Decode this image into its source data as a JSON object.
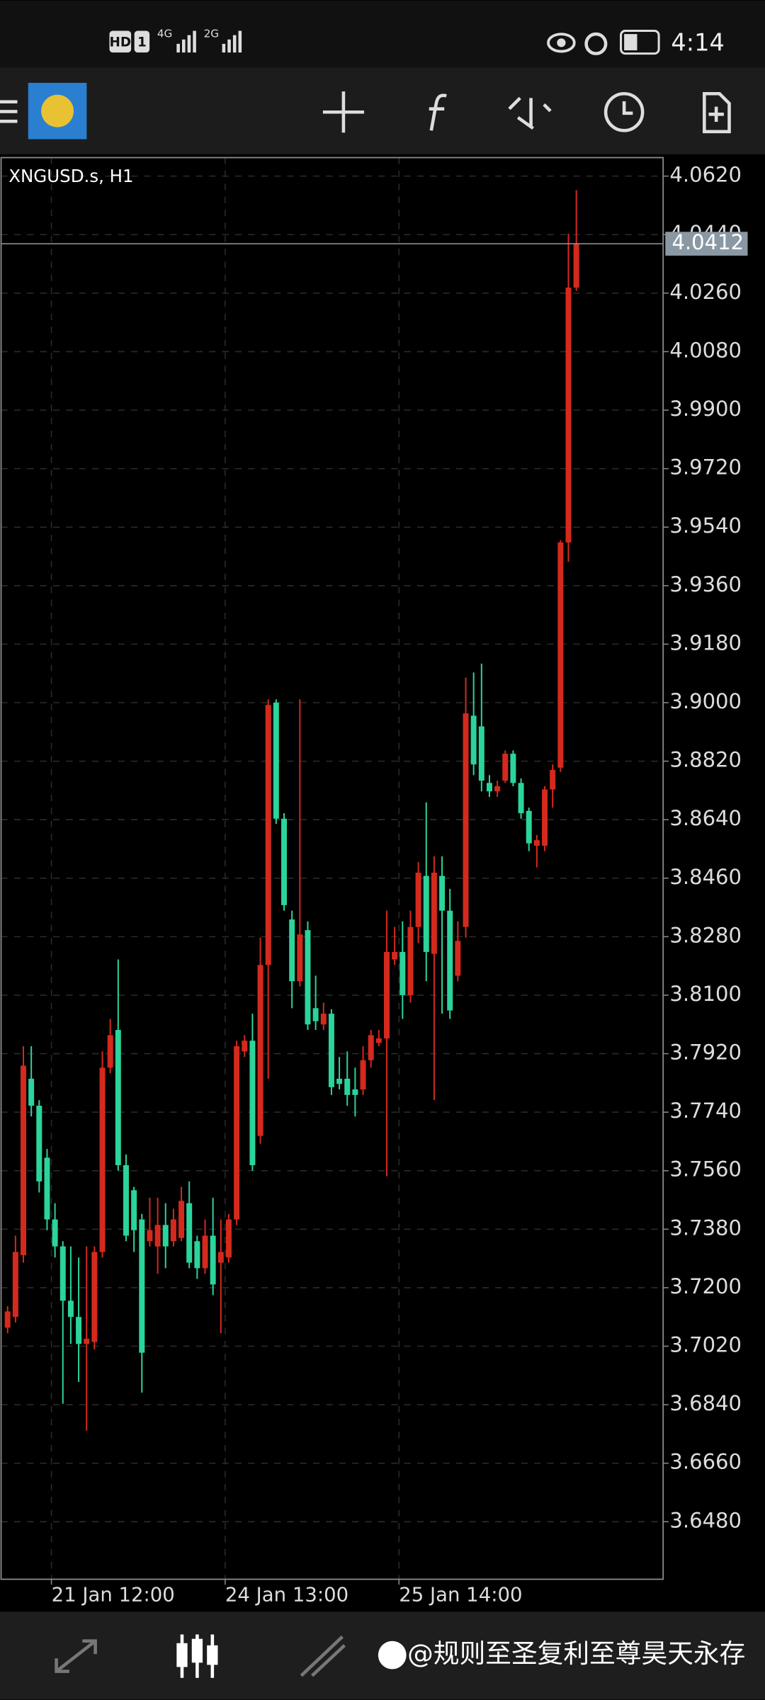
{
  "status_bar": {
    "time": "4:14",
    "hd": "HD",
    "sim": "1",
    "net1": "4G",
    "net2": "2G"
  },
  "watermark": "@规则至圣复利至尊昊天永存",
  "chart_data": {
    "type": "candlestick",
    "title": "XNGUSD.s, H1",
    "up_color": "#d42a1e",
    "down_color": "#2bd49b",
    "grid": true,
    "categories": [
      null,
      null,
      null,
      null,
      null,
      "21 Jan 12:00",
      null,
      null,
      null,
      null,
      null,
      null,
      null,
      null,
      null,
      null,
      null,
      null,
      null,
      null,
      null,
      null,
      null,
      null,
      null,
      null,
      null,
      "24 Jan 13:00",
      null,
      null,
      null,
      null,
      null,
      null,
      null,
      null,
      null,
      null,
      null,
      null,
      null,
      null,
      null,
      null,
      null,
      null,
      null,
      null,
      null,
      "25 Jan 14:00",
      null,
      null,
      null,
      null,
      null,
      null,
      null,
      null,
      null,
      null,
      null,
      null,
      null,
      null,
      null,
      null,
      null,
      null,
      null,
      null,
      null,
      null,
      null
    ],
    "open": [
      3.7077,
      3.711,
      3.73,
      3.7843,
      3.776,
      3.76,
      3.741,
      3.7327,
      3.716,
      3.711,
      3.7027,
      3.7033,
      3.731,
      3.7877,
      3.7993,
      3.7577,
      3.75,
      3.741,
      3.7343,
      3.7327,
      3.7393,
      3.7343,
      3.7353,
      3.746,
      3.7343,
      3.726,
      3.736,
      3.7277,
      3.7293,
      3.741,
      3.7927,
      3.796,
      3.7667,
      3.8193,
      3.9,
      3.8643,
      3.8333,
      3.8143,
      3.83,
      3.806,
      3.801,
      3.8043,
      3.7843,
      3.7843,
      3.781,
      3.781,
      3.79,
      3.7953,
      3.7967,
      3.821,
      3.8233,
      3.81,
      3.831,
      3.8467,
      3.8227,
      3.8467,
      3.836,
      3.816,
      3.831,
      3.896,
      3.8927,
      3.8753,
      3.8727,
      3.876,
      3.8843,
      3.8753,
      3.8667,
      3.856,
      3.856,
      3.8733,
      3.88,
      3.9493,
      4.0277
    ],
    "high": [
      3.7143,
      3.736,
      3.7943,
      3.7943,
      3.7777,
      3.7627,
      3.746,
      3.7343,
      3.7327,
      3.7293,
      3.7327,
      3.7327,
      3.7927,
      3.8027,
      3.821,
      3.761,
      3.751,
      3.7427,
      3.7477,
      3.7477,
      3.746,
      3.7443,
      3.751,
      3.7527,
      3.736,
      3.741,
      3.7477,
      3.741,
      3.7427,
      3.796,
      3.7977,
      3.8043,
      3.8277,
      3.901,
      3.901,
      3.866,
      3.836,
      3.901,
      3.8327,
      3.816,
      3.8077,
      3.8057,
      3.791,
      3.7927,
      3.7877,
      3.7943,
      3.7993,
      3.7993,
      3.836,
      3.831,
      3.8327,
      3.836,
      3.851,
      3.8693,
      3.8527,
      3.8527,
      3.8427,
      3.8327,
      3.9077,
      3.9093,
      3.912,
      3.8777,
      3.876,
      3.8853,
      3.8853,
      3.8767,
      3.8677,
      3.8593,
      3.8743,
      3.881,
      3.95,
      4.0443,
      4.0577
    ],
    "low": [
      3.706,
      3.7093,
      3.7277,
      3.7727,
      3.7493,
      3.7377,
      3.7293,
      3.6843,
      3.7027,
      3.691,
      3.676,
      3.701,
      3.7293,
      3.786,
      3.756,
      3.7343,
      3.731,
      3.6877,
      3.7327,
      3.7243,
      3.726,
      3.7327,
      3.7343,
      3.726,
      3.7227,
      3.7243,
      3.7177,
      3.706,
      3.7277,
      3.7393,
      3.791,
      3.756,
      3.7643,
      3.7843,
      3.8627,
      3.836,
      3.806,
      3.8127,
      3.7993,
      3.7993,
      3.7993,
      3.7793,
      3.781,
      3.776,
      3.7727,
      3.7793,
      3.7877,
      3.7943,
      3.7543,
      3.8193,
      3.8027,
      3.8077,
      3.826,
      3.8143,
      3.7777,
      3.8043,
      3.8027,
      3.8143,
      3.8277,
      3.8777,
      3.8727,
      3.871,
      3.871,
      3.8753,
      3.8743,
      3.8643,
      3.8543,
      3.8493,
      3.8543,
      3.8677,
      3.8787,
      3.9433,
      4.0267
    ],
    "close": [
      3.7127,
      3.731,
      3.7883,
      3.776,
      3.7527,
      3.741,
      3.7327,
      3.716,
      3.711,
      3.7027,
      3.7043,
      3.731,
      3.7877,
      3.7977,
      3.7577,
      3.736,
      3.7377,
      3.7,
      3.7377,
      3.7393,
      3.7327,
      3.741,
      3.7467,
      3.7277,
      3.726,
      3.736,
      3.721,
      3.731,
      3.741,
      3.7943,
      3.796,
      3.7577,
      3.8193,
      3.8993,
      3.8643,
      3.8377,
      3.8143,
      3.8287,
      3.801,
      3.802,
      3.8043,
      3.7817,
      3.7827,
      3.7793,
      3.7793,
      3.79,
      3.7977,
      3.7967,
      3.8233,
      3.8233,
      3.81,
      3.831,
      3.8477,
      3.8233,
      3.8477,
      3.836,
      3.8053,
      3.8267,
      3.8967,
      3.881,
      3.876,
      3.8727,
      3.8743,
      3.8843,
      3.8753,
      3.866,
      3.8567,
      3.8577,
      3.8733,
      3.8793,
      3.9493,
      4.0277,
      4.0412
    ],
    "ylim": [
      3.6303,
      4.0677
    ],
    "yticks": [
      {
        "value": 4.062,
        "label": "4.0620"
      },
      {
        "value": 4.044,
        "label": "4.0440"
      },
      {
        "value": 4.026,
        "label": "4.0260"
      },
      {
        "value": 4.008,
        "label": "4.0080"
      },
      {
        "value": 3.99,
        "label": "3.9900"
      },
      {
        "value": 3.972,
        "label": "3.9720"
      },
      {
        "value": 3.954,
        "label": "3.9540"
      },
      {
        "value": 3.936,
        "label": "3.9360"
      },
      {
        "value": 3.918,
        "label": "3.9180"
      },
      {
        "value": 3.9,
        "label": "3.9000"
      },
      {
        "value": 3.882,
        "label": "3.8820"
      },
      {
        "value": 3.864,
        "label": "3.8640"
      },
      {
        "value": 3.846,
        "label": "3.8460"
      },
      {
        "value": 3.828,
        "label": "3.8280"
      },
      {
        "value": 3.81,
        "label": "3.8100"
      },
      {
        "value": 3.792,
        "label": "3.7920"
      },
      {
        "value": 3.774,
        "label": "3.7740"
      },
      {
        "value": 3.756,
        "label": "3.7560"
      },
      {
        "value": 3.738,
        "label": "3.7380"
      },
      {
        "value": 3.72,
        "label": "3.7200"
      },
      {
        "value": 3.702,
        "label": "3.7020"
      },
      {
        "value": 3.684,
        "label": "3.6840"
      },
      {
        "value": 3.666,
        "label": "3.6660"
      },
      {
        "value": 3.648,
        "label": "3.6480"
      }
    ],
    "price_line": {
      "value": 4.0412,
      "label": "4.0412"
    }
  }
}
